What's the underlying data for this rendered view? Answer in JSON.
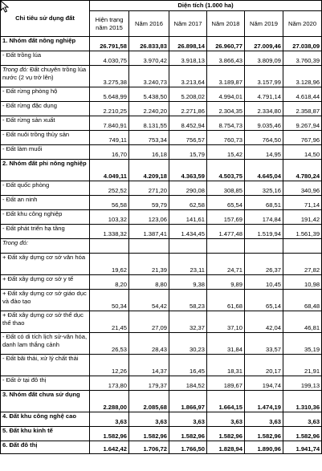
{
  "header": {
    "category": "Chỉ tiêu sử dụng đất",
    "area": "Diện tích (1.000 ha)",
    "years": [
      "Hiện trạng năm 2015",
      "Năm 2016",
      "Năm 2017",
      "Năm 2018",
      "Năm 2019",
      "Năm 2020"
    ]
  },
  "rows": [
    {
      "name": "1. Nhóm đất nông nghiệp",
      "style": "bold",
      "values": [
        "26.791,58",
        "26.833,83",
        "26.898,14",
        "26.960,77",
        "27.009,46",
        "27.038,09"
      ]
    },
    {
      "name": "- Đất trồng lúa",
      "style": "normal",
      "values": [
        "4.030,75",
        "3.970,42",
        "3.918,13",
        "3.866,43",
        "3.809,09",
        "3.760,39"
      ]
    },
    {
      "name": "Trong đó: Đất chuyên trồng lúa nước (2 vụ trở lên)",
      "style": "mixed",
      "values": [
        "3.275,38",
        "3.240,73",
        "3.213,64",
        "3.189,87",
        "3.157,99",
        "3.128,96"
      ]
    },
    {
      "name": "- Đất rừng phòng hộ",
      "style": "normal",
      "values": [
        "5.648,99",
        "5.438,50",
        "5.208,02",
        "4.994,01",
        "4.791,14",
        "4.618,44"
      ]
    },
    {
      "name": "- Đất rừng đặc dụng",
      "style": "normal",
      "values": [
        "2.210,25",
        "2.240,20",
        "2.271,86",
        "2.304,35",
        "2.334,80",
        "2.358,87"
      ]
    },
    {
      "name": "- Đất rừng sản xuất",
      "style": "normal",
      "values": [
        "7.840,91",
        "8.131,55",
        "8.452,94",
        "8.754,73",
        "9.035,46",
        "9.267,94"
      ]
    },
    {
      "name": "- Đất nuôi trồng thủy sản",
      "style": "normal",
      "values": [
        "749,11",
        "753,34",
        "756,57",
        "760,73",
        "764,50",
        "767,96"
      ]
    },
    {
      "name": "- Đất làm muối",
      "style": "normal",
      "values": [
        "16,70",
        "16,18",
        "15,79",
        "15,42",
        "14,95",
        "14,50"
      ]
    },
    {
      "name": "2. Nhóm đất phi nông nghiệp",
      "style": "bold",
      "values": [
        "4.049,11",
        "4.209,18",
        "4.363,59",
        "4.503,75",
        "4.645,04",
        "4.780,24"
      ]
    },
    {
      "name": "- Đất quốc phòng",
      "style": "normal",
      "values": [
        "252,52",
        "271,20",
        "290,08",
        "308,85",
        "325,16",
        "340,96"
      ]
    },
    {
      "name": "- Đất an ninh",
      "style": "normal",
      "values": [
        "56,58",
        "59,79",
        "62,58",
        "65,54",
        "68,51",
        "71,14"
      ]
    },
    {
      "name": "- Đất khu công nghiệp",
      "style": "normal",
      "values": [
        "103,32",
        "123,06",
        "141,61",
        "157,69",
        "174,84",
        "191,42"
      ]
    },
    {
      "name": "- Đất phát triển hạ tầng",
      "style": "normal",
      "values": [
        "1.338,32",
        "1.387,41",
        "1.434,45",
        "1.477,48",
        "1.519,94",
        "1.561,39"
      ]
    },
    {
      "name": "Trong đó:",
      "style": "ital",
      "values": [
        "",
        "",
        "",
        "",
        "",
        ""
      ]
    },
    {
      "name": "+ Đất xây dựng cơ sở văn hóa",
      "style": "normal",
      "values": [
        "19,62",
        "21,39",
        "23,11",
        "24,71",
        "26,37",
        "27,82"
      ]
    },
    {
      "name": "+ Đất xây dựng cơ sở y tế",
      "style": "normal",
      "values": [
        "8,20",
        "8,80",
        "9,38",
        "9,89",
        "10,45",
        "10,98"
      ]
    },
    {
      "name": "+ Đất xây dựng cơ sở giáo dục và đào tạo",
      "style": "normal",
      "values": [
        "50,34",
        "54,42",
        "58,23",
        "61,68",
        "65,14",
        "68,48"
      ]
    },
    {
      "name": "+ Đất xây dựng cơ sở thể dục thể thao",
      "style": "normal",
      "values": [
        "21,45",
        "27,09",
        "32,37",
        "37,10",
        "42,04",
        "46,81"
      ]
    },
    {
      "name": "- Đất có di tích lịch sử-văn hóa, danh lam thắng cảnh",
      "style": "normal",
      "values": [
        "26,53",
        "28,43",
        "30,23",
        "31,84",
        "33,57",
        "35,19"
      ]
    },
    {
      "name": "- Đất bãi thải, xử lý chất thải",
      "style": "normal",
      "values": [
        "12,26",
        "14,37",
        "16,45",
        "18,31",
        "20,17",
        "21,91"
      ]
    },
    {
      "name": "- Đất ở tại đô thị",
      "style": "normal",
      "values": [
        "173,80",
        "179,37",
        "184,52",
        "189,67",
        "194,74",
        "199,13"
      ]
    },
    {
      "name": "3. Nhóm đất chưa sử dụng",
      "style": "bold",
      "values": [
        "2.288,00",
        "2.085,68",
        "1.866,97",
        "1.664,15",
        "1.474,19",
        "1.310,36"
      ]
    },
    {
      "name": "4. Đất khu công nghệ cao",
      "style": "bold",
      "values": [
        "3,63",
        "3,63",
        "3,63",
        "3,63",
        "3,63",
        "3,63"
      ]
    },
    {
      "name": "5. Đất khu kinh tế",
      "style": "bold",
      "values": [
        "1.582,96",
        "1.582,96",
        "1.582,96",
        "1.582,96",
        "1.582,96",
        "1.582,96"
      ]
    },
    {
      "name": "6. Đất đô thị",
      "style": "bold",
      "values": [
        "1.642,42",
        "1.706,72",
        "1.766,50",
        "1.828,94",
        "1.890,96",
        "1.941,74"
      ]
    }
  ]
}
